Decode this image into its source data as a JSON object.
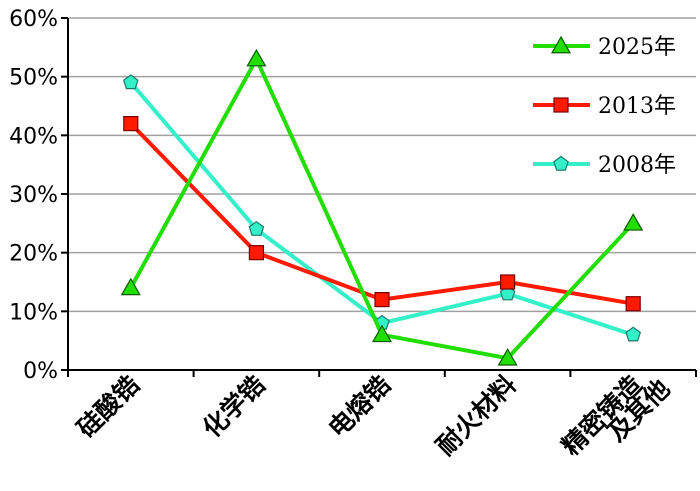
{
  "chart_data": {
    "type": "line",
    "categories": [
      "硅酸锆",
      "化学锆",
      "电熔锆",
      "耐火材料",
      "精密铸造|及其他"
    ],
    "y_ticks": [
      "0%",
      "10%",
      "20%",
      "30%",
      "40%",
      "50%",
      "60%"
    ],
    "ylim": [
      0,
      60
    ],
    "grid": true,
    "legend_position": "top-right",
    "series": [
      {
        "name": "2025年",
        "color": "#22dd00",
        "marker": "triangle",
        "values": [
          14,
          53,
          6,
          2,
          25
        ]
      },
      {
        "name": "2013年",
        "color": "#ff1a00",
        "marker": "square",
        "values": [
          42,
          20,
          12,
          15,
          11.3
        ]
      },
      {
        "name": "2008年",
        "color": "#33f0c8",
        "marker": "pentagon",
        "values": [
          49,
          24,
          8,
          13,
          6
        ]
      }
    ]
  }
}
